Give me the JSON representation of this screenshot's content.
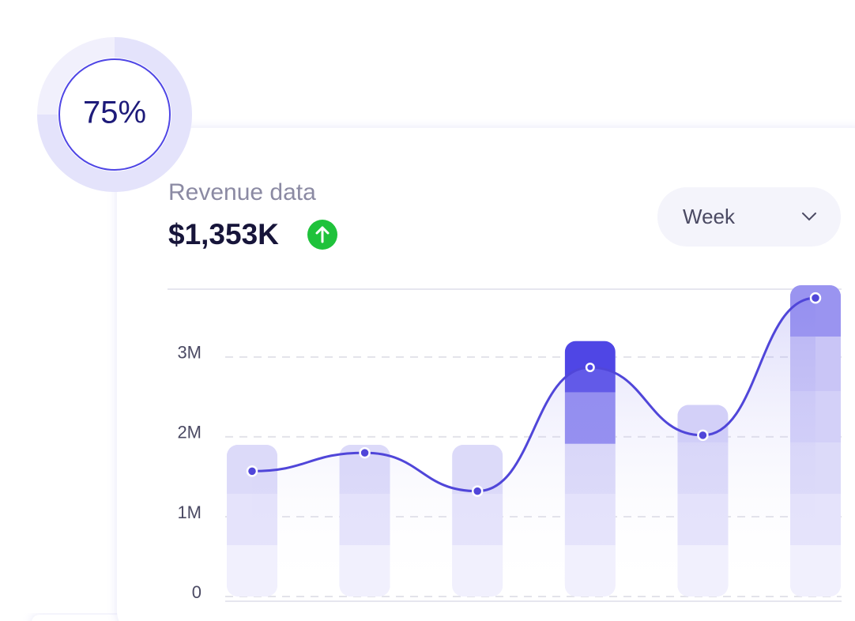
{
  "progress": {
    "value": 75,
    "label": "75%"
  },
  "header": {
    "title": "Revenue data",
    "total": "$1,353K"
  },
  "period_select": "Week",
  "chart_data": {
    "type": "bar",
    "categories": [
      null,
      null,
      null,
      null,
      null,
      null
    ],
    "values": [
      1.9,
      1.9,
      1.9,
      3.2,
      2.4,
      3.9
    ],
    "line_values": [
      1.57,
      1.8,
      1.32,
      2.87,
      2.02,
      3.74
    ],
    "highlight": [
      3,
      5
    ],
    "color": "#dcdaf9",
    "highlight_color": "#4f46e5",
    "line_color": "#5046d9",
    "ylim": [
      0,
      3.85
    ],
    "yticks": [
      0,
      {
        "value": 1,
        "label": "1M"
      },
      {
        "value": 2,
        "label": "2M"
      },
      {
        "value": 3,
        "label": "3M"
      }
    ],
    "grid": true
  }
}
